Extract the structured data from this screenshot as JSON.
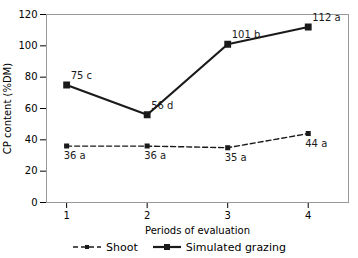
{
  "chart_data": {
    "type": "line",
    "xlabel": "Periods of evaluation",
    "ylabel": "CP content (%DM)",
    "x": [
      1,
      2,
      3,
      4
    ],
    "series": [
      {
        "name": "Shoot",
        "color": "#1a1a1a",
        "values": [
          36,
          36,
          35,
          44
        ],
        "value_labels": [
          "36 a",
          "36 a",
          "35 a",
          "44 a"
        ],
        "line_style": "dashed",
        "marker": "square"
      },
      {
        "name": "Simulated grazing",
        "color": "#1a1a1a",
        "values": [
          75,
          56,
          101,
          112
        ],
        "value_labels": [
          "75 c",
          "56 d",
          "101 b",
          "112 a"
        ],
        "line_style": "solid",
        "marker": "square"
      }
    ],
    "xlim": [
      0.75,
      4.5
    ],
    "xticks": [
      1,
      2,
      3,
      4
    ],
    "ylim": [
      0,
      120
    ],
    "yticks": [
      0,
      20,
      40,
      60,
      80,
      100,
      120
    ],
    "data_labels": true,
    "grid": false,
    "legend": "bottom"
  }
}
